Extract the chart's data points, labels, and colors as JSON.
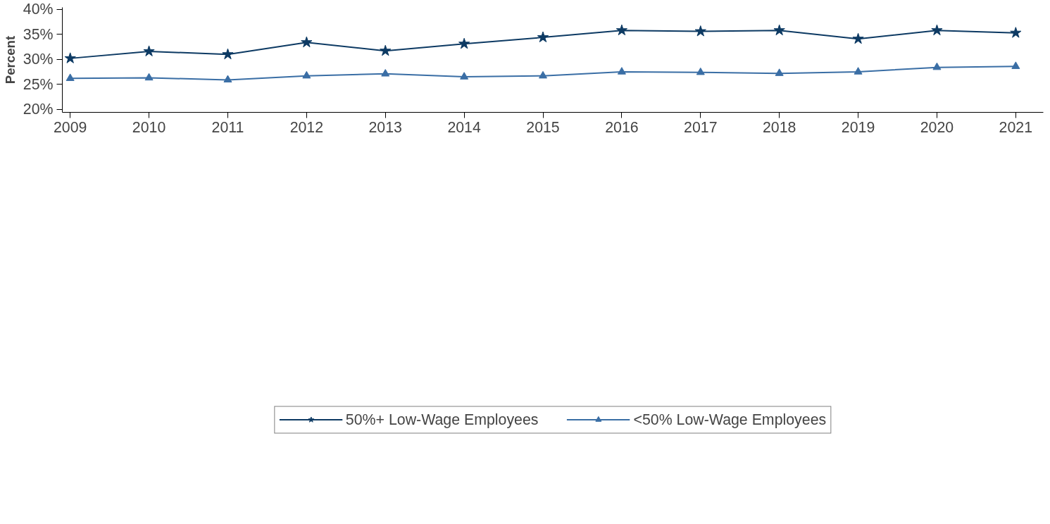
{
  "chart_data": {
    "type": "line",
    "ylabel": "Percent",
    "x": [
      2009,
      2010,
      2011,
      2012,
      2013,
      2014,
      2015,
      2016,
      2017,
      2018,
      2019,
      2020,
      2021
    ],
    "series": [
      {
        "name": "50%+ Low-Wage Employees",
        "color": "#0d3a63",
        "marker": "star",
        "values": [
          30.2,
          31.6,
          31.0,
          33.4,
          31.7,
          33.1,
          34.4,
          35.8,
          35.6,
          35.8,
          34.1,
          35.8,
          35.3
        ]
      },
      {
        "name": "<50% Low-Wage Employees",
        "color": "#3a6ea5",
        "marker": "triangle",
        "values": [
          26.2,
          26.3,
          25.9,
          26.7,
          27.1,
          26.5,
          26.7,
          27.5,
          27.4,
          27.2,
          27.5,
          28.4,
          28.6
        ]
      }
    ],
    "xlim": [
      2008.9,
      2021.35
    ],
    "xticks": [
      2009,
      2010,
      2011,
      2012,
      2013,
      2014,
      2015,
      2016,
      2017,
      2018,
      2019,
      2020,
      2021
    ],
    "ylim": [
      19.4,
      40.4
    ],
    "yticks": [
      {
        "value": 20,
        "label": "20%"
      },
      {
        "value": 25,
        "label": "25%"
      },
      {
        "value": 30,
        "label": "30%"
      },
      {
        "value": 35,
        "label": "35%"
      },
      {
        "value": 40,
        "label": "40%"
      }
    ],
    "grid": false,
    "legend": "bottom",
    "line_style": "solid"
  }
}
